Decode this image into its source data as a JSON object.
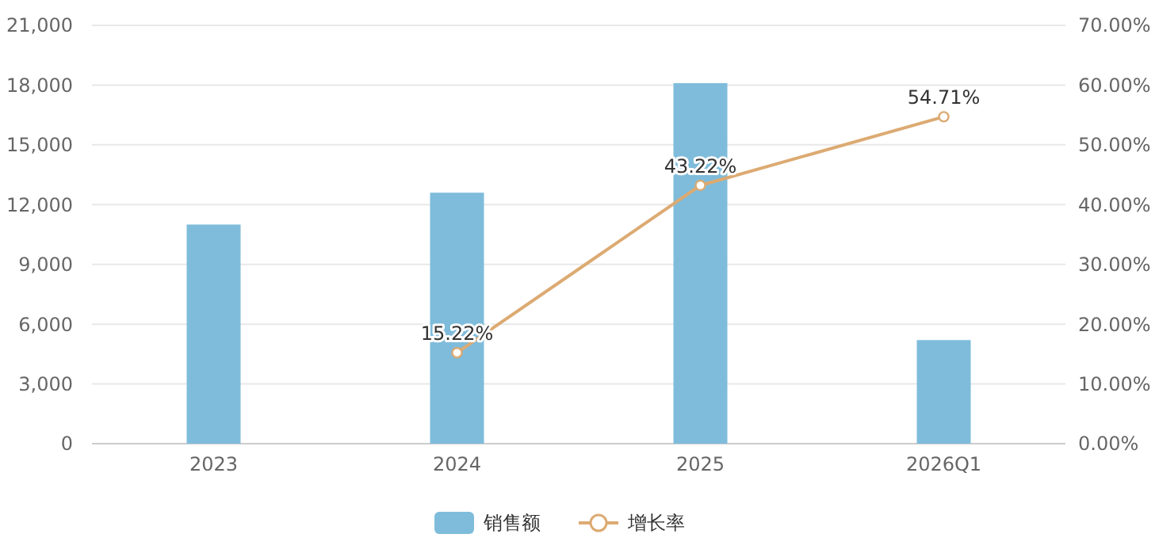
{
  "chart_data": {
    "type": "bar",
    "categories": [
      "2023",
      "2024",
      "2025",
      "2026Q1"
    ],
    "series": [
      {
        "name": "销售额",
        "color": "#7fbcdb",
        "values": [
          11000,
          12600,
          18100,
          5200
        ]
      },
      {
        "name": "增长率",
        "type": "line",
        "axis": "y2",
        "color": "#dcaa72",
        "marker": "circle",
        "values": [
          null,
          15.22,
          43.22,
          54.71
        ],
        "value_labels": [
          null,
          "15.22%",
          "43.22%",
          "54.71%"
        ]
      }
    ],
    "ylim": [
      0,
      21000
    ],
    "yticks": [
      {
        "value": 0,
        "label": "0"
      },
      {
        "value": 3000,
        "label": "3,000"
      },
      {
        "value": 6000,
        "label": "6,000"
      },
      {
        "value": 9000,
        "label": "9,000"
      },
      {
        "value": 12000,
        "label": "12,000"
      },
      {
        "value": 15000,
        "label": "15,000"
      },
      {
        "value": 18000,
        "label": "18,000"
      },
      {
        "value": 21000,
        "label": "21,000"
      }
    ],
    "y2lim": [
      0,
      70
    ],
    "y2ticks": [
      {
        "value": 0,
        "label": "0.00%"
      },
      {
        "value": 10,
        "label": "10.00%"
      },
      {
        "value": 20,
        "label": "20.00%"
      },
      {
        "value": 30,
        "label": "30.00%"
      },
      {
        "value": 40,
        "label": "40.00%"
      },
      {
        "value": 50,
        "label": "50.00%"
      },
      {
        "value": 60,
        "label": "60.00%"
      },
      {
        "value": 70,
        "label": "70.00%"
      }
    ],
    "grid": "y",
    "legend": "bottom"
  }
}
